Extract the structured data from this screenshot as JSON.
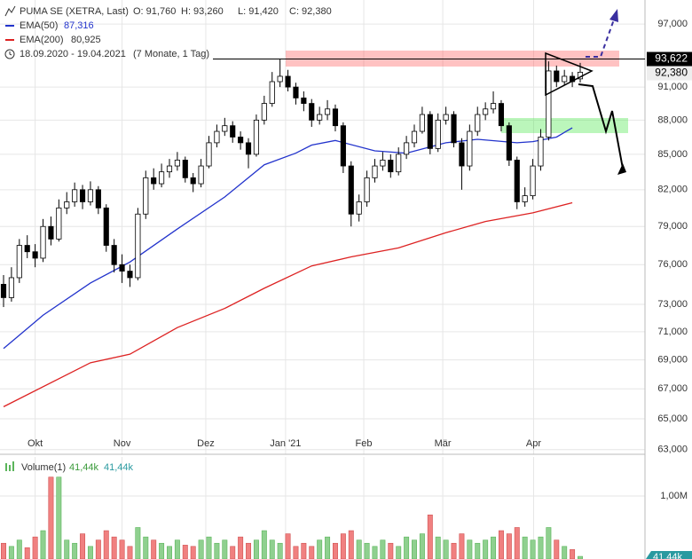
{
  "header": {
    "title": "PUMA SE (XETRA, Last)",
    "open": "O: 91,760",
    "high": "H: 93,260",
    "low": "L: 91,420",
    "close": "C: 92,380",
    "period": "18.09.2020 - 19.04.2021",
    "duration": "(7 Monate, 1 Tag)"
  },
  "chart_data": {
    "type": "candlestick",
    "log_scale": true,
    "grid": true,
    "up_color": "#ffffff",
    "down_color": "#000000",
    "xlim": [
      -0.45,
      81.2
    ],
    "xticks": [
      {
        "value": 4,
        "label": "Okt"
      },
      {
        "value": 15,
        "label": "Nov"
      },
      {
        "value": 25.6,
        "label": "Dez"
      },
      {
        "value": 35.7,
        "label": "Jan '21"
      },
      {
        "value": 45.6,
        "label": "Feb"
      },
      {
        "value": 55.6,
        "label": "Mär"
      },
      {
        "value": 67.1,
        "label": "Apr"
      }
    ],
    "ylim": [
      62.7,
      99.4
    ],
    "yticks": [
      {
        "value": 97,
        "label": "97,000"
      },
      {
        "value": 91,
        "label": "91,000"
      },
      {
        "value": 88,
        "label": "88,000"
      },
      {
        "value": 85,
        "label": "85,000"
      },
      {
        "value": 82,
        "label": "82,000"
      },
      {
        "value": 79,
        "label": "79,000"
      },
      {
        "value": 76,
        "label": "76,000"
      },
      {
        "value": 73,
        "label": "73,000"
      },
      {
        "value": 71,
        "label": "71,000"
      },
      {
        "value": 69,
        "label": "69,000"
      },
      {
        "value": 67,
        "label": "67,000"
      },
      {
        "value": 65,
        "label": "65,000"
      },
      {
        "value": 63,
        "label": "63,000"
      }
    ],
    "high_marker": {
      "value": 93.622,
      "label": "93,622"
    },
    "last_marker": {
      "value": 92.38,
      "label": "92,380"
    },
    "candles": [
      [
        74.5,
        75.2,
        72.8,
        73.5
      ],
      [
        73.5,
        75.8,
        73.2,
        75
      ],
      [
        75,
        78,
        74.6,
        77.5
      ],
      [
        77.5,
        78.3,
        76.5,
        77
      ],
      [
        77,
        77.6,
        75.8,
        76.5
      ],
      [
        76.5,
        79.6,
        76.2,
        79
      ],
      [
        79,
        79.8,
        77.5,
        78
      ],
      [
        78,
        81.2,
        77.8,
        80.5
      ],
      [
        80.5,
        81.8,
        80,
        81
      ],
      [
        81,
        82.6,
        80.6,
        82
      ],
      [
        82,
        82.4,
        80.4,
        81
      ],
      [
        81,
        82.7,
        80.7,
        82
      ],
      [
        82,
        82.3,
        80,
        80.5
      ],
      [
        80.5,
        80.8,
        77,
        77.5
      ],
      [
        77.5,
        78,
        75.4,
        76
      ],
      [
        76,
        76.8,
        74.6,
        75.5
      ],
      [
        75.5,
        76,
        74.3,
        75
      ],
      [
        75,
        80.5,
        74.8,
        80
      ],
      [
        80,
        83.6,
        79.6,
        83
      ],
      [
        83,
        83.8,
        82,
        82.5
      ],
      [
        82.5,
        84.2,
        82.2,
        83.5
      ],
      [
        83.5,
        84.6,
        83,
        84
      ],
      [
        84,
        85.2,
        83.6,
        84.5
      ],
      [
        84.5,
        84.8,
        82.6,
        83
      ],
      [
        83,
        83.4,
        81.8,
        82.5
      ],
      [
        82.5,
        84.6,
        82.2,
        84
      ],
      [
        84,
        86.6,
        83.8,
        86
      ],
      [
        86,
        87.6,
        85.6,
        87
      ],
      [
        87,
        88.2,
        86.6,
        87.5
      ],
      [
        87.5,
        87.9,
        86,
        86.5
      ],
      [
        86.5,
        87,
        85.4,
        86
      ],
      [
        86,
        86.4,
        83.8,
        85
      ],
      [
        85,
        88.5,
        84.8,
        88
      ],
      [
        88,
        90.2,
        87.6,
        89.5
      ],
      [
        89.5,
        92.4,
        89.2,
        91.5
      ],
      [
        91.5,
        93.622,
        91,
        92
      ],
      [
        92,
        92.6,
        90.6,
        91
      ],
      [
        91,
        91.4,
        89.4,
        90
      ],
      [
        90,
        90.6,
        88.8,
        89.5
      ],
      [
        89.5,
        89.9,
        87.4,
        88
      ],
      [
        88,
        89.2,
        87.6,
        88.5
      ],
      [
        88.5,
        89.8,
        88,
        89
      ],
      [
        89,
        89.4,
        87,
        87.5
      ],
      [
        87.5,
        87.8,
        83.4,
        84
      ],
      [
        84,
        84.4,
        79,
        80
      ],
      [
        80,
        81.6,
        79.4,
        81
      ],
      [
        81,
        83.6,
        80.6,
        83
      ],
      [
        83,
        84.6,
        82.6,
        84
      ],
      [
        84,
        85.2,
        83.6,
        84.5
      ],
      [
        84.5,
        85,
        83,
        83.5
      ],
      [
        83.5,
        85.6,
        83.2,
        85
      ],
      [
        85,
        86.6,
        84.6,
        86
      ],
      [
        86,
        87.6,
        85.6,
        87
      ],
      [
        87,
        89.2,
        86.8,
        88.5
      ],
      [
        88.5,
        88.8,
        85,
        85.5
      ],
      [
        85.5,
        88.6,
        85.2,
        88
      ],
      [
        88,
        89.2,
        87.6,
        88.5
      ],
      [
        88.5,
        88.8,
        85.6,
        86
      ],
      [
        86,
        86.4,
        82,
        84
      ],
      [
        84,
        87.6,
        83.6,
        87
      ],
      [
        87,
        89.2,
        86.6,
        88.5
      ],
      [
        88.5,
        89.6,
        88,
        89
      ],
      [
        89,
        90.6,
        88.6,
        89.5
      ],
      [
        89.5,
        89.8,
        87,
        87.5
      ],
      [
        87.5,
        87.8,
        84,
        84.5
      ],
      [
        84.5,
        84.8,
        80.4,
        81
      ],
      [
        81,
        82.2,
        80.6,
        81.5
      ],
      [
        81.5,
        84.6,
        81.2,
        84
      ],
      [
        84,
        87.2,
        83.6,
        86.5
      ],
      [
        86.5,
        93.4,
        86.2,
        92.5
      ],
      [
        92.5,
        93,
        91,
        91.5
      ],
      [
        91.5,
        92.6,
        91.2,
        92
      ],
      [
        92,
        92.4,
        91,
        91.5
      ],
      [
        91.76,
        93.26,
        91.42,
        92.38
      ]
    ],
    "series": [
      {
        "name": "EMA(50)",
        "color": "#2233cc",
        "last_label": "87,316",
        "x": [
          0,
          5,
          11,
          16,
          22,
          28,
          33,
          37,
          39,
          42,
          47,
          51,
          56,
          60,
          65,
          67,
          70,
          72
        ],
        "values": [
          69.8,
          72.2,
          74.6,
          76.2,
          78.8,
          81.4,
          84.1,
          85.1,
          85.8,
          86.2,
          85.3,
          85.1,
          86.0,
          86.3,
          86.0,
          86.1,
          86.5,
          87.316
        ]
      },
      {
        "name": "EMA(200)",
        "color": "#dd2222",
        "last_label": "80,925",
        "x": [
          0,
          11,
          16,
          22,
          28,
          33,
          39,
          44,
          50,
          56,
          61,
          67,
          72
        ],
        "values": [
          65.8,
          68.8,
          69.4,
          71.3,
          72.7,
          74.2,
          75.9,
          76.6,
          77.3,
          78.5,
          79.4,
          80.1,
          80.925
        ]
      }
    ],
    "volume": {
      "name": "Volume(1)",
      "color_up": "#8fd08f",
      "color_down": "#f08080",
      "last_labels": [
        "41,44k",
        "41,44k"
      ],
      "badge": "41,44k",
      "ylim": [
        0,
        1620000
      ],
      "yticks": [
        {
          "value": 1000000,
          "label": "1,00M"
        }
      ],
      "values": [
        250000,
        200000,
        300000,
        180000,
        350000,
        450000,
        1300000,
        1300000,
        300000,
        250000,
        400000,
        200000,
        300000,
        450000,
        350000,
        300000,
        200000,
        500000,
        350000,
        300000,
        250000,
        200000,
        300000,
        220000,
        200000,
        300000,
        350000,
        250000,
        300000,
        200000,
        350000,
        250000,
        300000,
        450000,
        300000,
        250000,
        400000,
        200000,
        250000,
        200000,
        300000,
        350000,
        250000,
        400000,
        450000,
        300000,
        250000,
        200000,
        300000,
        250000,
        200000,
        350000,
        300000,
        400000,
        700000,
        350000,
        300000,
        250000,
        400000,
        300000,
        250000,
        300000,
        350000,
        450000,
        400000,
        500000,
        350000,
        300000,
        350000,
        500000,
        300000,
        200000,
        150000,
        41440
      ]
    }
  }
}
